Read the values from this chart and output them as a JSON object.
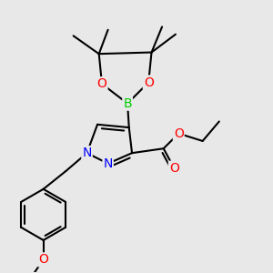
{
  "background_color": "#e8e8e8",
  "bond_color": "#000000",
  "bond_width": 1.5,
  "atom_colors": {
    "O": "#ff0000",
    "N": "#0000ff",
    "B": "#00cc00",
    "C": "#000000"
  },
  "font_size_atom": 10,
  "fig_width": 3.0,
  "fig_height": 3.0,
  "dpi": 100
}
